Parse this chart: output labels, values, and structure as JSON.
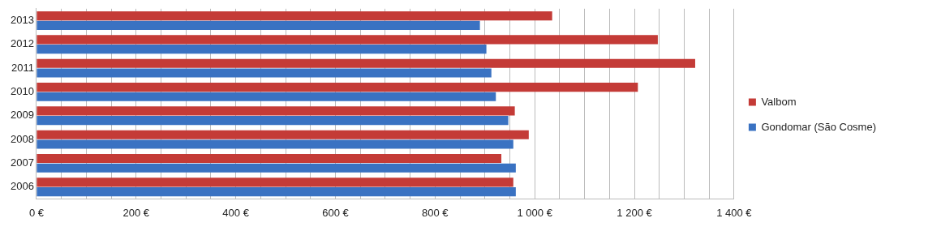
{
  "chart_data": {
    "type": "bar",
    "orientation": "horizontal",
    "categories": [
      "2013",
      "2012",
      "2011",
      "2010",
      "2009",
      "2008",
      "2007",
      "2006"
    ],
    "series": [
      {
        "name": "Valbom",
        "color": "#c43b37",
        "values": [
          1035,
          1247,
          1322,
          1207,
          960,
          988,
          933,
          957
        ]
      },
      {
        "name": "Gondomar (São Cosme)",
        "color": "#3a72c2",
        "values": [
          890,
          903,
          913,
          922,
          947,
          957,
          962,
          962
        ]
      }
    ],
    "xlim": [
      0,
      1400
    ],
    "xticks": [
      {
        "value": 0,
        "label": "0 €"
      },
      {
        "value": 50,
        "label": null
      },
      {
        "value": 100,
        "label": null
      },
      {
        "value": 150,
        "label": null
      },
      {
        "value": 200,
        "label": "200 €"
      },
      {
        "value": 250,
        "label": null
      },
      {
        "value": 300,
        "label": null
      },
      {
        "value": 350,
        "label": null
      },
      {
        "value": 400,
        "label": "400 €"
      },
      {
        "value": 450,
        "label": null
      },
      {
        "value": 500,
        "label": null
      },
      {
        "value": 550,
        "label": null
      },
      {
        "value": 600,
        "label": "600 €"
      },
      {
        "value": 650,
        "label": null
      },
      {
        "value": 700,
        "label": null
      },
      {
        "value": 750,
        "label": null
      },
      {
        "value": 800,
        "label": "800 €"
      },
      {
        "value": 850,
        "label": null
      },
      {
        "value": 900,
        "label": null
      },
      {
        "value": 950,
        "label": null
      },
      {
        "value": 1000,
        "label": "1 000 €"
      },
      {
        "value": 1050,
        "label": null
      },
      {
        "value": 1100,
        "label": null
      },
      {
        "value": 1150,
        "label": null
      },
      {
        "value": 1200,
        "label": "1 200 €"
      },
      {
        "value": 1250,
        "label": null
      },
      {
        "value": 1300,
        "label": null
      },
      {
        "value": 1350,
        "label": null
      },
      {
        "value": 1400,
        "label": "1 400 €"
      }
    ],
    "grid": "x",
    "legend": "right"
  }
}
